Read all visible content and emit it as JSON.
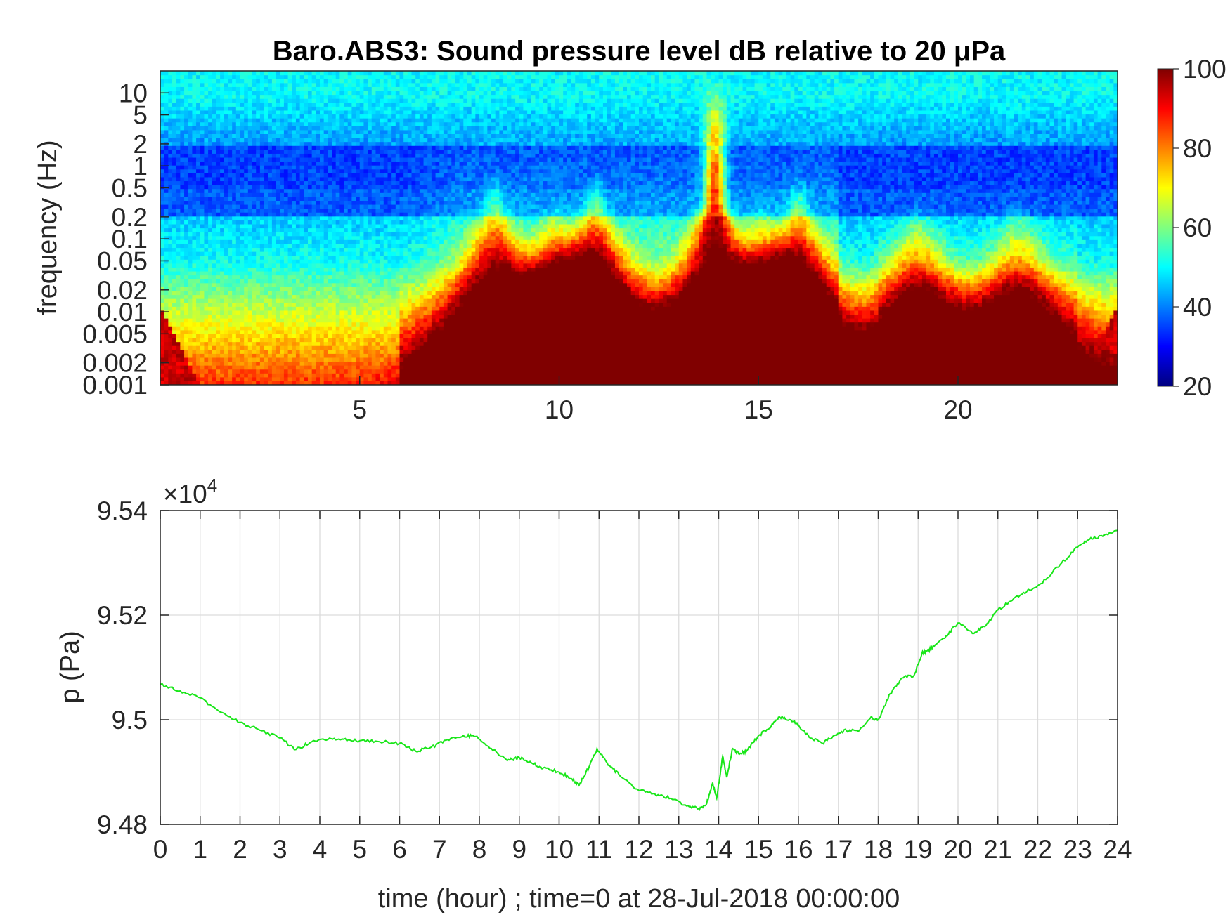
{
  "chart_data": [
    {
      "type": "heatmap",
      "title": "Baro.ABS3: Sound pressure level dB relative to 20 μPa",
      "ylabel": "frequency (Hz)",
      "xlabel": "",
      "y_scale": "log",
      "xlim": [
        0,
        24
      ],
      "ylim": [
        0.001,
        20
      ],
      "x_ticks": [
        "5",
        "10",
        "15",
        "20"
      ],
      "x_tick_values": [
        5,
        10,
        15,
        20
      ],
      "y_ticks": [
        "10",
        "5",
        "2",
        "1",
        "0.5",
        "0.2",
        "0.1",
        "0.05",
        "0.02",
        "0.01",
        "0.005",
        "0.002",
        "0.001"
      ],
      "y_tick_values": [
        10,
        5,
        2,
        1,
        0.5,
        0.2,
        0.1,
        0.05,
        0.02,
        0.01,
        0.005,
        0.002,
        0.001
      ],
      "colormap": "jet",
      "colorbar": {
        "range": [
          20,
          100
        ],
        "ticks": [
          "100",
          "80",
          "60",
          "40",
          "20"
        ],
        "tick_values": [
          100,
          80,
          60,
          40,
          20
        ]
      },
      "spl_peaks": [
        {
          "time": 8.4,
          "freq": 0.05,
          "level": 92
        },
        {
          "time": 9.9,
          "freq": 0.02,
          "level": 100
        },
        {
          "time": 10.9,
          "freq": 0.05,
          "level": 98
        },
        {
          "time": 13.9,
          "freq": 1,
          "level": 100
        },
        {
          "time": 15.1,
          "freq": 0.02,
          "level": 95
        },
        {
          "time": 16.0,
          "freq": 0.05,
          "level": 94
        },
        {
          "time": 19.0,
          "freq": 0.02,
          "level": 92
        },
        {
          "time": 21.5,
          "freq": 0.02,
          "level": 90
        }
      ],
      "grid": false
    },
    {
      "type": "line",
      "title": "",
      "xlabel": "time (hour) ; time=0 at 28-Jul-2018 00:00:00",
      "ylabel": "p (Pa)",
      "y_multiplier": "×10",
      "y_multiplier_exp": "4",
      "xlim": [
        0,
        24
      ],
      "ylim": [
        94800,
        95400
      ],
      "x_ticks": [
        "0",
        "1",
        "2",
        "3",
        "4",
        "5",
        "6",
        "7",
        "8",
        "9",
        "10",
        "11",
        "12",
        "13",
        "14",
        "15",
        "16",
        "17",
        "18",
        "19",
        "20",
        "21",
        "22",
        "23",
        "24"
      ],
      "y_ticks": [
        "9.54",
        "9.52",
        "9.5",
        "9.48"
      ],
      "y_tick_values": [
        95400,
        95200,
        95000,
        94800
      ],
      "grid": true,
      "series": [
        {
          "color": "#19e619",
          "x": [
            0,
            0.5,
            1,
            1.5,
            2,
            2.5,
            3,
            3.4,
            3.8,
            4.2,
            4.6,
            5,
            5.5,
            6,
            6.4,
            6.8,
            7.2,
            7.6,
            7.9,
            8.3,
            8.7,
            9,
            9.3,
            9.6,
            10,
            10.3,
            10.5,
            10.75,
            10.95,
            11.2,
            11.5,
            12,
            12.4,
            12.8,
            13.2,
            13.5,
            13.7,
            13.85,
            13.95,
            14.1,
            14.2,
            14.35,
            14.5,
            14.7,
            15,
            15.3,
            15.5,
            15.8,
            16,
            16.3,
            16.6,
            16.9,
            17.2,
            17.5,
            17.8,
            18,
            18.3,
            18.6,
            18.9,
            19.1,
            19.2,
            19.4,
            19.7,
            20,
            20.4,
            20.7,
            21,
            21.4,
            21.8,
            22.2,
            22.6,
            23,
            23.3,
            23.6,
            24
          ],
          "y": [
            95068,
            95055,
            95042,
            95015,
            94995,
            94980,
            94965,
            94943,
            94958,
            94962,
            94963,
            94960,
            94958,
            94955,
            94940,
            94948,
            94962,
            94970,
            94968,
            94945,
            94922,
            94928,
            94918,
            94908,
            94900,
            94888,
            94875,
            94910,
            94945,
            94918,
            94895,
            94865,
            94858,
            94850,
            94835,
            94830,
            94840,
            94880,
            94850,
            94930,
            94890,
            94945,
            94935,
            94940,
            94970,
            94985,
            95005,
            95000,
            94990,
            94965,
            94955,
            94970,
            94980,
            94978,
            95003,
            95000,
            95050,
            95080,
            95085,
            95128,
            95130,
            95140,
            95160,
            95185,
            95165,
            95180,
            95210,
            95232,
            95248,
            95268,
            95300,
            95330,
            95345,
            95352,
            95362
          ]
        }
      ]
    }
  ]
}
